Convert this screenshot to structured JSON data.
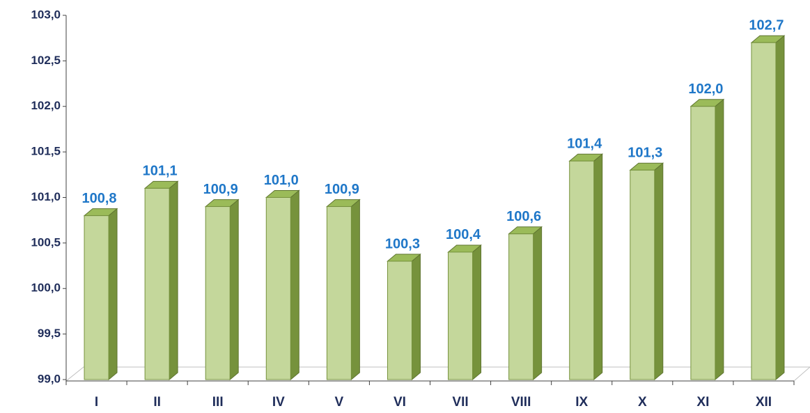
{
  "chart_data": {
    "type": "bar",
    "categories": [
      "I",
      "II",
      "III",
      "IV",
      "V",
      "VI",
      "VII",
      "VIII",
      "IX",
      "X",
      "XI",
      "XII"
    ],
    "values": [
      100.8,
      101.1,
      100.9,
      101.0,
      100.9,
      100.3,
      100.4,
      100.6,
      101.4,
      101.3,
      102.0,
      102.7
    ],
    "value_labels": [
      "100,8",
      "101,1",
      "100,9",
      "101,0",
      "100,9",
      "100,3",
      "100,4",
      "100,6",
      "101,4",
      "101,3",
      "102,0",
      "102,7"
    ],
    "color": "#c4d79b",
    "ylim": [
      99,
      103
    ],
    "yticks": [
      {
        "value": 99,
        "label": "99,0"
      },
      {
        "value": 99.5,
        "label": "99,5"
      },
      {
        "value": 100,
        "label": "100,0"
      },
      {
        "value": 100.5,
        "label": "100,5"
      },
      {
        "value": 101,
        "label": "101,0"
      },
      {
        "value": 101.5,
        "label": "101,5"
      },
      {
        "value": 102,
        "label": "102,0"
      },
      {
        "value": 102.5,
        "label": "102,5"
      },
      {
        "value": 103,
        "label": "103,0"
      }
    ],
    "grid": false
  }
}
